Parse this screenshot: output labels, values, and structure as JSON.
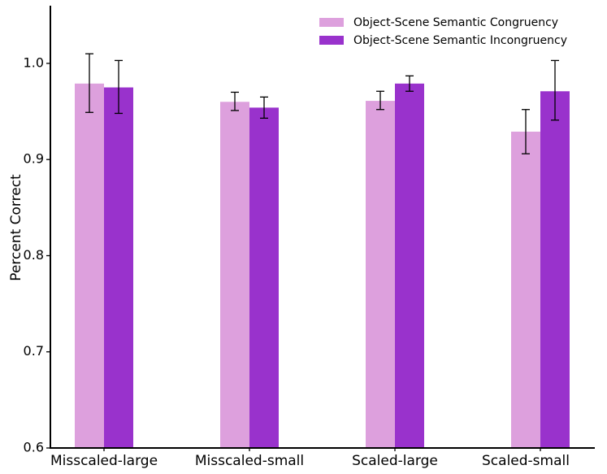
{
  "chart_data": {
    "type": "bar",
    "categories": [
      "Misscaled-large",
      "Misscaled-small",
      "Scaled-large",
      "Scaled-small"
    ],
    "series": [
      {
        "name": "Object-Scene Semantic Congruency",
        "color": "#dda0dd",
        "values": [
          0.979,
          0.96,
          0.961,
          0.929
        ],
        "error_low": [
          0.949,
          0.951,
          0.952,
          0.906
        ],
        "error_high": [
          1.01,
          0.97,
          0.971,
          0.952
        ]
      },
      {
        "name": "Object-Scene Semantic Incongruency",
        "color": "#9932cc",
        "values": [
          0.975,
          0.954,
          0.979,
          0.971
        ],
        "error_low": [
          0.948,
          0.943,
          0.971,
          0.941
        ],
        "error_high": [
          1.003,
          0.965,
          0.987,
          1.003
        ]
      }
    ],
    "title": "",
    "xlabel": "",
    "ylabel": "Percent Correct",
    "ylim": [
      0.6,
      1.06
    ],
    "yticks": [
      0.6,
      0.7,
      0.8,
      0.9,
      1.0
    ],
    "ytick_labels": [
      "0.6",
      "0.7",
      "0.8",
      "0.9",
      "1.0"
    ],
    "grid": false,
    "legend_position": "top-right",
    "error_bars": true
  }
}
